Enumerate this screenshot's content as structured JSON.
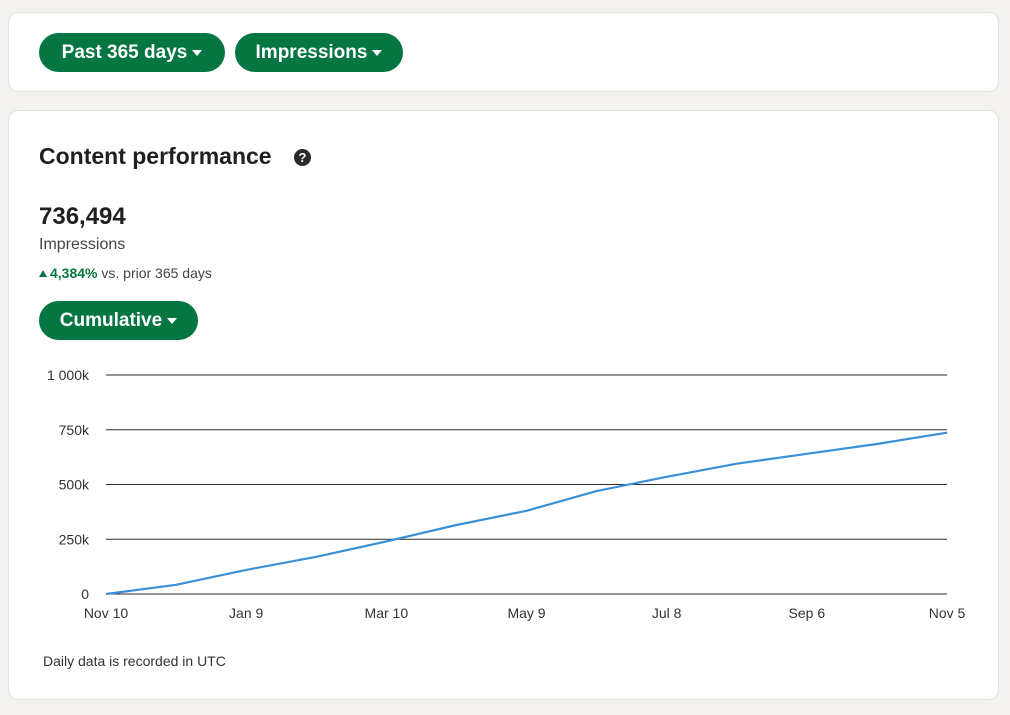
{
  "filters": {
    "range_label": "Past 365 days",
    "metric_label": "Impressions"
  },
  "performance": {
    "title": "Content performance",
    "total": "736,494",
    "metric": "Impressions",
    "change_pct": "4,384%",
    "change_suffix": "vs. prior 365 days",
    "mode_label": "Cumulative",
    "footnote": "Daily data is recorded in UTC"
  },
  "colors": {
    "accent": "#057642",
    "line": "#3b8fd6"
  },
  "chart_data": {
    "type": "line",
    "x_tick_labels": [
      "Nov 10",
      "Jan 9",
      "Mar 10",
      "May 9",
      "Jul 8",
      "Sep 6",
      "Nov 5"
    ],
    "y_tick_labels": [
      "0",
      "250k",
      "500k",
      "750k",
      "1 000k"
    ],
    "y_ticks": [
      0,
      250000,
      500000,
      750000,
      1000000
    ],
    "ylim": [
      0,
      1000000
    ],
    "grid": true,
    "series": [
      {
        "x": [
          "Nov 10",
          "Dec 10",
          "Jan 9",
          "Feb 8",
          "Mar 10",
          "Apr 9",
          "May 9",
          "Jun 8",
          "Jul 8",
          "Aug 7",
          "Sep 6",
          "Oct 6",
          "Nov 5"
        ],
        "values": [
          0,
          42000,
          110000,
          170000,
          240000,
          315000,
          380000,
          470000,
          535000,
          595000,
          640000,
          685000,
          736494
        ]
      }
    ]
  }
}
